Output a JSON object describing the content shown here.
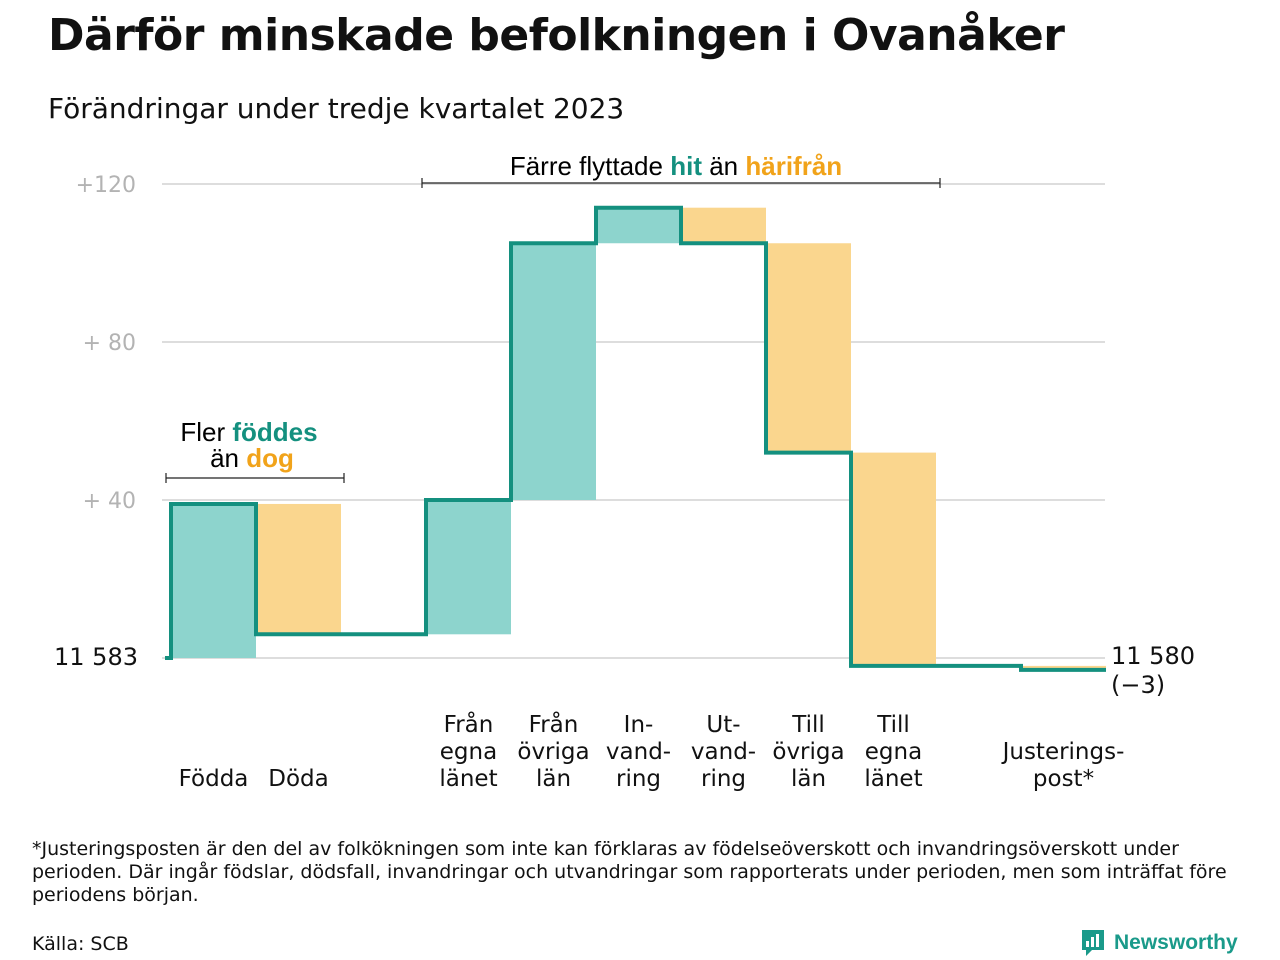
{
  "title": "Därför minskade befolkningen i Ovanåker",
  "subtitle": "Förändringar under tredje kvartalet 2023",
  "colors": {
    "in": "#8dd4cd",
    "out": "#fad68e",
    "line": "#14907f",
    "in_text": "#14907f",
    "out_text": "#f1a31a",
    "grid": "#dddddd",
    "tick": "#b3b3b3"
  },
  "chart_data": {
    "type": "waterfall",
    "start_value": 11583,
    "start_label": "11  583",
    "end_value": 11580,
    "end_label": "11 580",
    "end_change_label": "(−3)",
    "y_ticks": [
      {
        "value": 40,
        "label": "+  40"
      },
      {
        "value": 80,
        "label": "+  80"
      },
      {
        "value": 120,
        "label": "+120"
      }
    ],
    "ylim": [
      0,
      120
    ],
    "steps": [
      {
        "category": [
          "Födda"
        ],
        "change": 39,
        "kind": "in"
      },
      {
        "category": [
          "Döda"
        ],
        "change": -33,
        "kind": "out"
      },
      {
        "category": [],
        "change": 0,
        "kind": "none"
      },
      {
        "category": [
          "Från",
          "egna",
          "länet"
        ],
        "change": 34,
        "kind": "in"
      },
      {
        "category": [
          "Från",
          "övriga",
          "län"
        ],
        "change": 65,
        "kind": "in"
      },
      {
        "category": [
          "In-",
          "vand-",
          "ring"
        ],
        "change": 9,
        "kind": "in"
      },
      {
        "category": [
          "Ut-",
          "vand-",
          "ring"
        ],
        "change": -9,
        "kind": "out"
      },
      {
        "category": [
          "Till",
          "övriga",
          "län"
        ],
        "change": -53,
        "kind": "out"
      },
      {
        "category": [
          "Till",
          "egna",
          "länet"
        ],
        "change": -54,
        "kind": "out"
      },
      {
        "category": [],
        "change": 0,
        "kind": "none"
      },
      {
        "category": [
          "Justerings-",
          "post*"
        ],
        "change": -1,
        "kind": "out"
      }
    ],
    "annotations": [
      {
        "text": "Fler ",
        "highlight_in": "föddes",
        "line2": "än ",
        "highlight_out": "dog"
      },
      {
        "text": "Färre flyttade ",
        "highlight_in": "hit",
        "middle": " än ",
        "highlight_out": "härifrån"
      }
    ]
  },
  "footnote": "*Justeringsposten är den del av folkökningen som inte kan förklaras av födelseöverskott och invandringsöverskott under perioden. Där ingår födslar, dödsfall, invandringar och utvandringar som rapporterats under perioden, men som inträffat före periodens början.",
  "source": "Källa: SCB",
  "brand": {
    "name": "Newsworthy",
    "icon": "newsworthy-logo-icon"
  }
}
